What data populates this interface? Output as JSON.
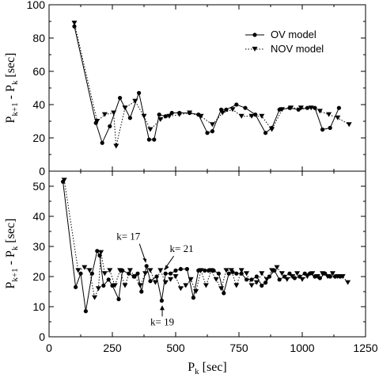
{
  "chart_data": [
    {
      "type": "line",
      "xlim": [
        0,
        1250
      ],
      "ylim": [
        0,
        100
      ],
      "yticks": [
        0,
        20,
        40,
        60,
        80,
        100
      ],
      "xticks": [
        0,
        250,
        500,
        750,
        1000,
        1250
      ],
      "ylabel": "P_{k+1} - P_k [sec]",
      "legend": {
        "placement": "top-right"
      },
      "series": [
        {
          "name": "OV model",
          "color": "#000000",
          "style": "solid",
          "marker": "circle",
          "x": [
            100,
            185,
            210,
            240,
            280,
            320,
            355,
            395,
            415,
            435,
            460,
            485,
            515,
            555,
            590,
            625,
            645,
            680,
            700,
            740,
            775,
            815,
            855,
            880,
            910,
            950,
            985,
            1020,
            1050,
            1080,
            1110,
            1145
          ],
          "y": [
            87,
            29,
            17,
            27,
            44,
            32,
            47,
            19,
            19,
            34,
            33,
            35,
            35,
            35,
            34,
            23,
            24,
            37,
            37,
            40,
            38,
            34,
            23,
            26,
            37,
            38,
            37,
            38,
            38,
            25,
            26,
            38
          ]
        },
        {
          "name": "NOV model",
          "color": "#000000",
          "style": "dotted",
          "marker": "triangle-down",
          "x": [
            100,
            190,
            220,
            255,
            265,
            300,
            340,
            375,
            400,
            440,
            475,
            515,
            555,
            600,
            645,
            685,
            725,
            760,
            800,
            840,
            880,
            920,
            955,
            995,
            1035,
            1070,
            1105,
            1140,
            1185
          ],
          "y": [
            89,
            30,
            34,
            35,
            15,
            38,
            42,
            33,
            25,
            31,
            33,
            34,
            35,
            33,
            28,
            35,
            37,
            33,
            33,
            33,
            25,
            37,
            38,
            38,
            38,
            36,
            34,
            32,
            28
          ]
        }
      ]
    },
    {
      "type": "line",
      "xlim": [
        0,
        1250
      ],
      "ylim": [
        0,
        55
      ],
      "yticks": [
        0,
        10,
        20,
        30,
        40,
        50
      ],
      "xticks": [
        0,
        250,
        500,
        750,
        1000,
        1250
      ],
      "xticklabels": [
        "0",
        "250",
        "500",
        "750",
        "1000",
        "1250"
      ],
      "xlabel": "P_k [sec]",
      "ylabel": "P_{k+1} - P_k [sec]",
      "annotations": [
        {
          "text": "k= 17",
          "x": 382,
          "y": 23.5
        },
        {
          "text": "k= 21",
          "x": 455,
          "y": 21
        },
        {
          "text": "k= 19",
          "x": 447,
          "y": 11.5
        }
      ],
      "series": [
        {
          "name": "OV model",
          "color": "#000000",
          "style": "solid",
          "marker": "circle",
          "x": [
            55,
            105,
            125,
            145,
            170,
            190,
            200,
            215,
            235,
            250,
            275,
            290,
            315,
            335,
            350,
            365,
            385,
            400,
            425,
            445,
            460,
            480,
            500,
            520,
            545,
            570,
            590,
            615,
            630,
            650,
            670,
            690,
            710,
            725,
            740,
            760,
            780,
            800,
            820,
            840,
            855,
            870,
            890,
            910,
            930,
            950,
            970,
            990,
            1010,
            1030,
            1050,
            1070,
            1090,
            1110,
            1130,
            1150
          ],
          "y": [
            51.5,
            16.5,
            21,
            8.5,
            21,
            28.5,
            27,
            17,
            19,
            17,
            12.5,
            22,
            21,
            20,
            21,
            15,
            23.5,
            18.5,
            20,
            12,
            21,
            21,
            22,
            22.5,
            22.5,
            13,
            22,
            22,
            22,
            22,
            21,
            14.5,
            21,
            21.5,
            21,
            21,
            19,
            19,
            20,
            17,
            18,
            20,
            22,
            19,
            20,
            21,
            19.5,
            20,
            21,
            21,
            20,
            19.5,
            21,
            20,
            20,
            20
          ]
        },
        {
          "name": "NOV model",
          "color": "#000000",
          "style": "dotted",
          "marker": "triangle-down",
          "x": [
            60,
            115,
            140,
            160,
            180,
            195,
            205,
            220,
            240,
            260,
            280,
            300,
            320,
            340,
            360,
            380,
            400,
            420,
            440,
            460,
            480,
            500,
            520,
            540,
            560,
            580,
            600,
            620,
            640,
            660,
            680,
            700,
            720,
            740,
            760,
            780,
            800,
            820,
            840,
            860,
            880,
            900,
            920,
            940,
            960,
            980,
            1000,
            1020,
            1040,
            1060,
            1080,
            1100,
            1120,
            1140,
            1160,
            1180
          ],
          "y": [
            52,
            22,
            23,
            22,
            13,
            16,
            28,
            21,
            22,
            17,
            22,
            17,
            22,
            20,
            17,
            21,
            22,
            18,
            22,
            18,
            19,
            20,
            16,
            17,
            19,
            15,
            22,
            17,
            22,
            19,
            16,
            22,
            22,
            17,
            22,
            21,
            17,
            18,
            21,
            19,
            22,
            23,
            21,
            19,
            20,
            21,
            19,
            20,
            21,
            20,
            21,
            20,
            21,
            20,
            20,
            18
          ]
        }
      ]
    }
  ]
}
